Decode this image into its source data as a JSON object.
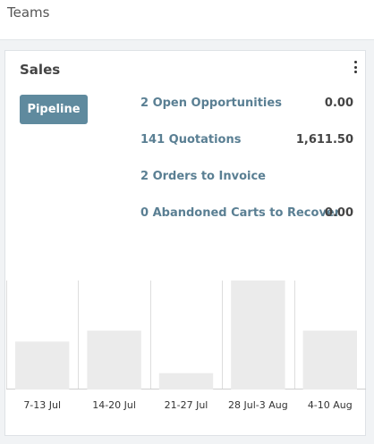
{
  "header": {
    "title": "Teams"
  },
  "card": {
    "title": "Sales",
    "menu_icon": "kebab-vertical-icon",
    "pipeline_label": "Pipeline",
    "stats": [
      {
        "label": "2 Open Opportunities",
        "value": "0.00"
      },
      {
        "label": "141 Quotations",
        "value": "1,611.50"
      },
      {
        "label": "2 Orders to Invoice",
        "value": ""
      },
      {
        "label": "0  Abandoned Carts to Recover",
        "value": "0.00"
      }
    ]
  },
  "chart_data": {
    "type": "bar",
    "categories": [
      "7-13 Jul",
      "14-20 Jul",
      "21-27 Jul",
      "28 Jul-3 Aug",
      "4-10 Aug"
    ],
    "values": [
      44,
      54,
      15,
      100,
      54
    ],
    "ylim": [
      0,
      100
    ],
    "grid": true,
    "bar_color": "#ebebeb",
    "grid_color": "#dddddd"
  }
}
